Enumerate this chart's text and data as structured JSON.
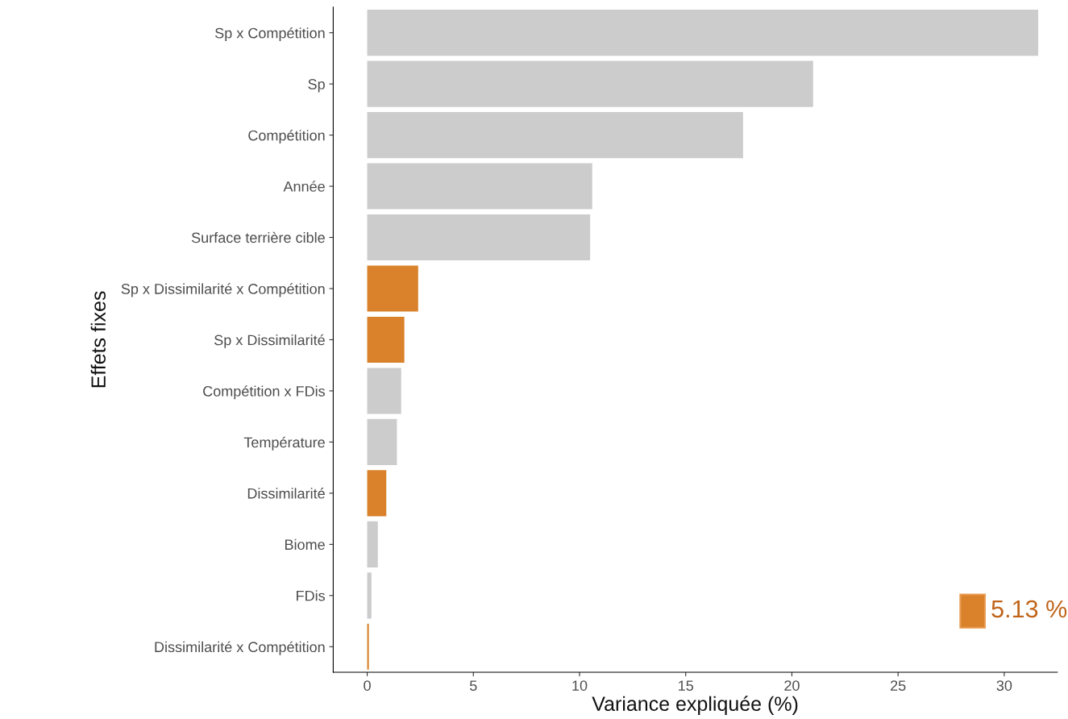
{
  "chart_data": {
    "type": "bar",
    "orientation": "horizontal",
    "xlabel": "Variance expliquée (%)",
    "ylabel": "Effets fixes",
    "categories": [
      "Sp x Compétition",
      "Sp",
      "Compétition",
      "Année",
      "Surface terrière cible",
      "Sp x Dissimilarité x Compétition",
      "Sp x Dissimilarité",
      "Compétition x FDis",
      "Température",
      "Dissimilarité",
      "Biome",
      "FDis",
      "Dissimilarité x Compétition"
    ],
    "values": [
      31.6,
      21.0,
      17.7,
      10.6,
      10.5,
      2.4,
      1.75,
      1.6,
      1.4,
      0.9,
      0.5,
      0.2,
      0.08
    ],
    "colors": [
      "#cccccc",
      "#cccccc",
      "#cccccc",
      "#cccccc",
      "#cccccc",
      "#d9822b",
      "#d9822b",
      "#cccccc",
      "#cccccc",
      "#d9822b",
      "#cccccc",
      "#cccccc",
      "#d9822b"
    ],
    "xlim": [
      -1.6,
      32.5
    ],
    "xticks": [
      0,
      5,
      10,
      15,
      20,
      25,
      30
    ],
    "grid": false,
    "legend": false,
    "annotations": [
      "5.13 %"
    ]
  }
}
